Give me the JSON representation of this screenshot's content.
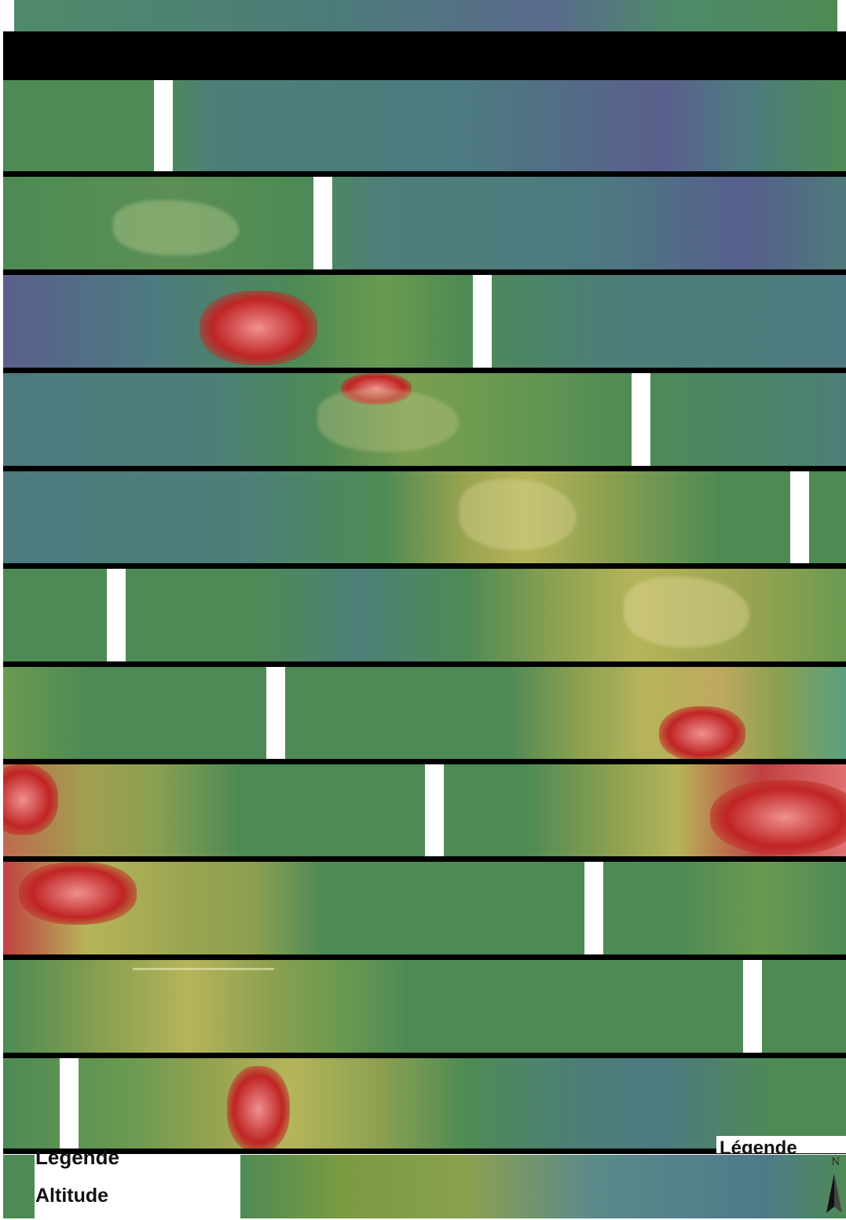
{
  "legend": {
    "title": "Legende",
    "subtitle": "Altitude",
    "title_alt": "Légende"
  },
  "north_arrow": {
    "label": "N",
    "icon": "north-arrow-icon"
  },
  "colors": {
    "low": "#4f6a8a",
    "mid_low": "#4e8a55",
    "mid": "#b6b45a",
    "high": "#c02424",
    "peak": "#f09090"
  }
}
